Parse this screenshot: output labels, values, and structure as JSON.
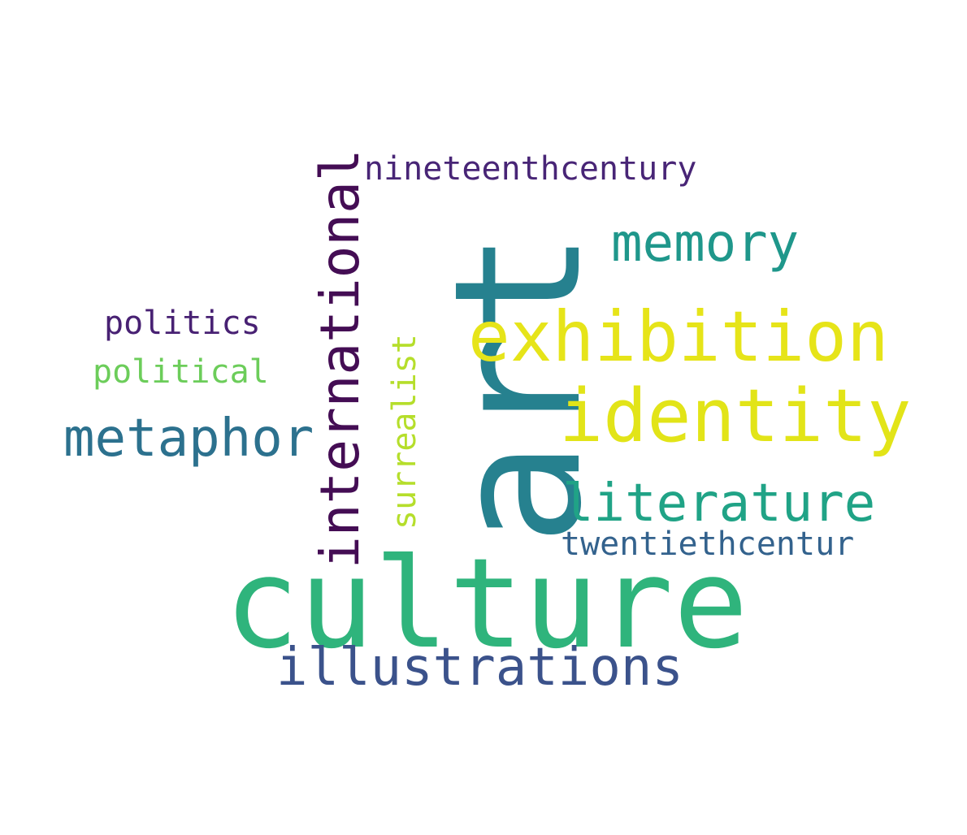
{
  "cloud": {
    "words": [
      {
        "text": "art",
        "color": "#26818f"
      },
      {
        "text": "culture",
        "color": "#2fb47c"
      },
      {
        "text": "exhibition",
        "color": "#e6e419"
      },
      {
        "text": "identity",
        "color": "#e2e418"
      },
      {
        "text": "international",
        "color": "#440d54"
      },
      {
        "text": "memory",
        "color": "#1f978b"
      },
      {
        "text": "metaphor",
        "color": "#2c718e"
      },
      {
        "text": "literature",
        "color": "#20a386"
      },
      {
        "text": "illustrations",
        "color": "#3b528b"
      },
      {
        "text": "nineteenthcentury",
        "color": "#482576"
      },
      {
        "text": "politics",
        "color": "#482173"
      },
      {
        "text": "political",
        "color": "#6ccd5a"
      },
      {
        "text": "surrealist",
        "color": "#b5de2b"
      },
      {
        "text": "twentiethcentur",
        "color": "#33628d"
      }
    ]
  }
}
